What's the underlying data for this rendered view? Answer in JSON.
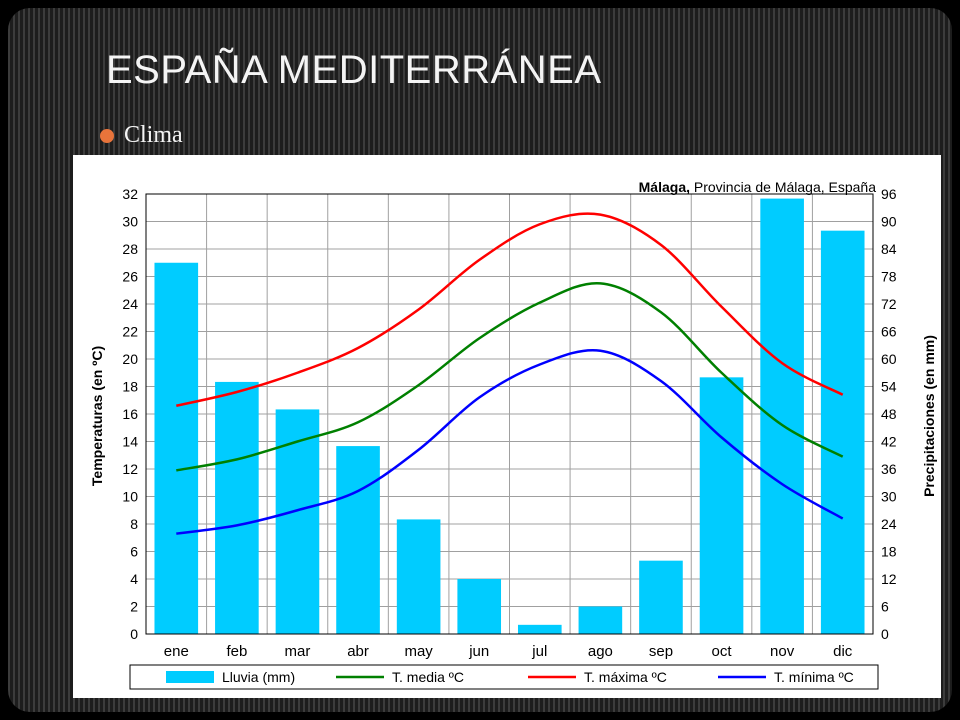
{
  "slide": {
    "title": "ESPAÑA MEDITERRÁNEA",
    "bullet": "Clima"
  },
  "colors": {
    "bullet": "#e8743b",
    "bars": "#00ccff",
    "media": "#008000",
    "maxima": "#ff0000",
    "minima": "#0000ff"
  },
  "chart_data": {
    "type": "bar+line",
    "title_bold": "Málaga,",
    "title_rest": " Provincia de Málaga, España",
    "ylabel_left": "Temperaturas (en ºC)",
    "ylabel_right": "Precipitaciones (en mm)",
    "ylim_left": [
      0,
      32
    ],
    "ylim_right": [
      0,
      96
    ],
    "yticks_left": [
      "0",
      "2",
      "4",
      "6",
      "8",
      "10",
      "12",
      "14",
      "16",
      "18",
      "20",
      "22",
      "24",
      "26",
      "28",
      "30",
      "32"
    ],
    "yticks_right": [
      "0",
      "6",
      "12",
      "18",
      "24",
      "30",
      "36",
      "42",
      "48",
      "54",
      "60",
      "66",
      "72",
      "78",
      "84",
      "90",
      "96"
    ],
    "categories": [
      "ene",
      "feb",
      "mar",
      "abr",
      "may",
      "jun",
      "jul",
      "ago",
      "sep",
      "oct",
      "nov",
      "dic"
    ],
    "grid": true,
    "legend_position": "bottom",
    "series": [
      {
        "name": "Lluvia (mm)",
        "type": "bar",
        "axis": "right",
        "color": "#00ccff",
        "values": [
          81,
          55,
          49,
          41,
          25,
          12,
          2,
          6,
          16,
          56,
          95,
          88
        ]
      },
      {
        "name": "T. media ºC",
        "type": "line",
        "axis": "left",
        "color": "#008000",
        "values": [
          11.9,
          12.7,
          14.0,
          15.4,
          18.1,
          21.5,
          24.1,
          25.5,
          23.4,
          19.0,
          15.2,
          12.9
        ]
      },
      {
        "name": "T. máxima ºC",
        "type": "line",
        "axis": "left",
        "color": "#ff0000",
        "values": [
          16.6,
          17.6,
          19.0,
          20.8,
          23.6,
          27.2,
          29.8,
          30.5,
          28.3,
          23.8,
          19.7,
          17.4
        ]
      },
      {
        "name": "T. mínima ºC",
        "type": "line",
        "axis": "left",
        "color": "#0000ff",
        "values": [
          7.3,
          7.9,
          9.0,
          10.4,
          13.4,
          17.2,
          19.6,
          20.6,
          18.4,
          14.3,
          10.9,
          8.4
        ]
      }
    ]
  }
}
